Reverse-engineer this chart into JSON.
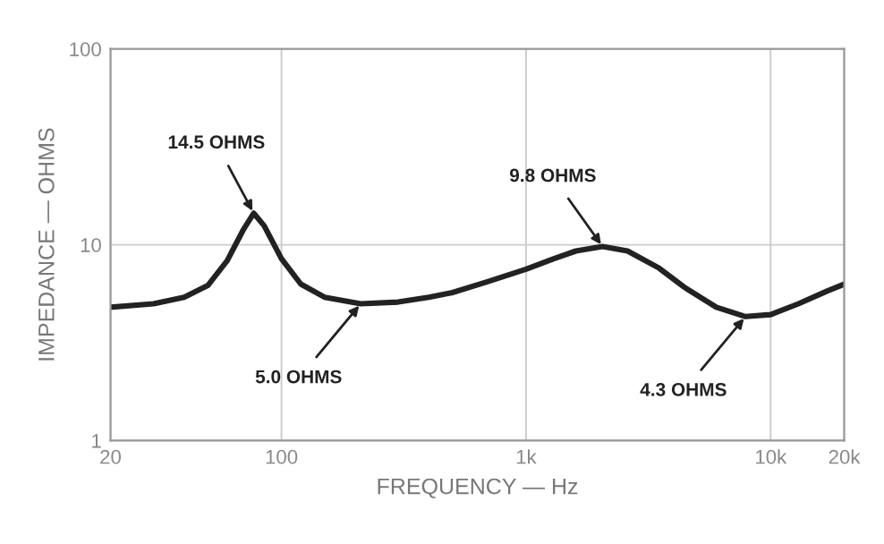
{
  "chart_data": {
    "type": "line",
    "xlabel": "FREQUENCY — Hz",
    "ylabel": "IMPEDANCE — OHMS",
    "log": "xy",
    "xlim": [
      20,
      20000
    ],
    "ylim": [
      1,
      100
    ],
    "xticks": [
      20,
      {
        "value": 100,
        "label": "100"
      },
      {
        "value": 1000,
        "label": "1k"
      },
      {
        "value": 10000,
        "label": "10k"
      },
      {
        "value": 20000,
        "label": "20k"
      }
    ],
    "yticks": [
      1,
      10,
      100
    ],
    "grid": true,
    "marker": "none",
    "line_style": "solid",
    "series": [
      {
        "color": "#222222",
        "x": [
          20,
          30,
          40,
          50,
          60,
          70,
          77,
          85,
          100,
          120,
          150,
          211,
          300,
          400,
          500,
          700,
          1000,
          1300,
          1600,
          2055,
          2600,
          3500,
          4500,
          6000,
          7900,
          10000,
          13000,
          17000,
          20000
        ],
        "values": [
          4.8,
          5.0,
          5.4,
          6.2,
          8.3,
          12,
          14.5,
          12.5,
          8.5,
          6.3,
          5.4,
          5.0,
          5.1,
          5.4,
          5.7,
          6.5,
          7.5,
          8.5,
          9.3,
          9.8,
          9.3,
          7.6,
          6.0,
          4.8,
          4.3,
          4.4,
          5.0,
          5.8,
          6.3
        ]
      }
    ],
    "annotations": [
      {
        "text": "14.5 OHMS",
        "x": 77,
        "y": 14.5
      },
      {
        "text": "5.0 OHMS",
        "x": 211,
        "y": 5.0
      },
      {
        "text": "9.8 OHMS",
        "x": 2055,
        "y": 9.8
      },
      {
        "text": "4.3 OHMS",
        "x": 7900,
        "y": 4.3
      }
    ]
  }
}
